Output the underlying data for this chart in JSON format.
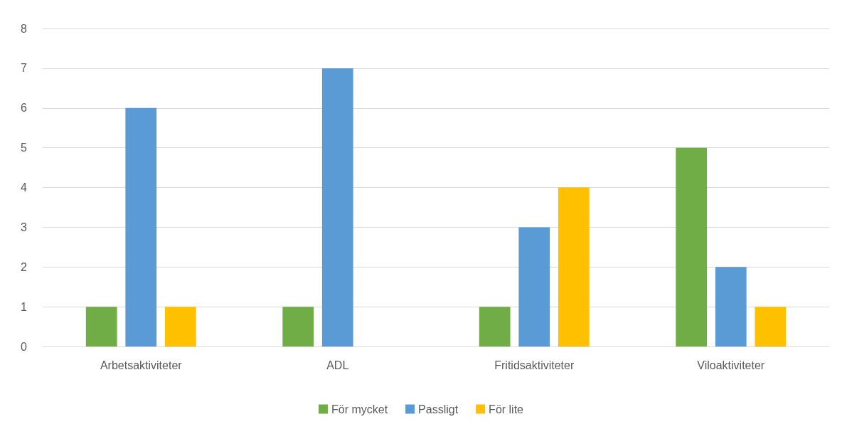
{
  "chart_data": {
    "type": "bar",
    "categories": [
      "Arbetsaktiviteter",
      "ADL",
      "Fritidsaktiviteter",
      "Viloaktiviteter"
    ],
    "series": [
      {
        "name": "För mycket",
        "color": "#70ad47",
        "values": [
          1,
          1,
          1,
          5
        ]
      },
      {
        "name": "Passligt",
        "color": "#5b9bd5",
        "values": [
          6,
          7,
          3,
          2
        ]
      },
      {
        "name": "För lite",
        "color": "#ffc000",
        "values": [
          1,
          0,
          4,
          1
        ]
      }
    ],
    "ylim": [
      0,
      8
    ],
    "yticks": [
      0,
      1,
      2,
      3,
      4,
      5,
      6,
      7,
      8
    ],
    "grid": "y",
    "legend": "bottom"
  }
}
